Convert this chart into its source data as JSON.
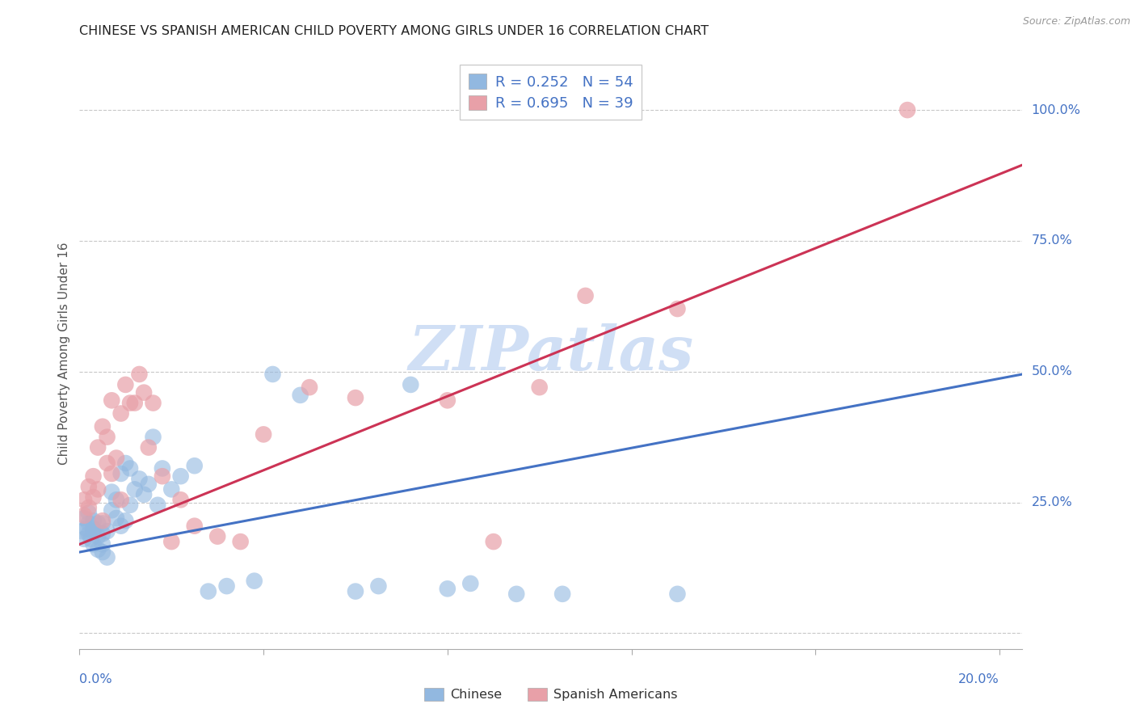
{
  "title": "CHINESE VS SPANISH AMERICAN CHILD POVERTY AMONG GIRLS UNDER 16 CORRELATION CHART",
  "source": "Source: ZipAtlas.com",
  "ylabel": "Child Poverty Among Girls Under 16",
  "xlim": [
    0.0,
    0.205
  ],
  "ylim": [
    -0.03,
    1.1
  ],
  "ytick_vals": [
    0.0,
    0.25,
    0.5,
    0.75,
    1.0
  ],
  "ytick_labels": [
    "",
    "25.0%",
    "50.0%",
    "75.0%",
    "100.0%"
  ],
  "xtick_vals": [
    0.0,
    0.04,
    0.08,
    0.12,
    0.16,
    0.2
  ],
  "chinese_R": 0.252,
  "chinese_N": 54,
  "spanish_R": 0.695,
  "spanish_N": 39,
  "chinese_dot_color": "#92b8e0",
  "spanish_dot_color": "#e8a0a8",
  "chinese_line_color": "#4472c4",
  "spanish_line_color": "#cc3355",
  "tick_label_color": "#4472c4",
  "ylabel_color": "#555555",
  "watermark_color": "#d0dff5",
  "chinese_scatter_x": [
    0.0005,
    0.001,
    0.001,
    0.0015,
    0.002,
    0.002,
    0.002,
    0.0025,
    0.003,
    0.003,
    0.003,
    0.003,
    0.004,
    0.004,
    0.004,
    0.005,
    0.005,
    0.005,
    0.005,
    0.006,
    0.006,
    0.007,
    0.007,
    0.008,
    0.008,
    0.009,
    0.009,
    0.01,
    0.01,
    0.011,
    0.011,
    0.012,
    0.013,
    0.014,
    0.015,
    0.016,
    0.017,
    0.018,
    0.02,
    0.022,
    0.025,
    0.028,
    0.032,
    0.038,
    0.042,
    0.048,
    0.06,
    0.065,
    0.072,
    0.08,
    0.085,
    0.095,
    0.105,
    0.13
  ],
  "chinese_scatter_y": [
    0.195,
    0.18,
    0.22,
    0.2,
    0.19,
    0.21,
    0.23,
    0.18,
    0.17,
    0.195,
    0.2,
    0.215,
    0.16,
    0.185,
    0.21,
    0.155,
    0.17,
    0.19,
    0.21,
    0.145,
    0.195,
    0.235,
    0.27,
    0.22,
    0.255,
    0.205,
    0.305,
    0.215,
    0.325,
    0.245,
    0.315,
    0.275,
    0.295,
    0.265,
    0.285,
    0.375,
    0.245,
    0.315,
    0.275,
    0.3,
    0.32,
    0.08,
    0.09,
    0.1,
    0.495,
    0.455,
    0.08,
    0.09,
    0.475,
    0.085,
    0.095,
    0.075,
    0.075,
    0.075
  ],
  "spanish_scatter_x": [
    0.001,
    0.001,
    0.002,
    0.002,
    0.003,
    0.003,
    0.004,
    0.004,
    0.005,
    0.005,
    0.006,
    0.006,
    0.007,
    0.007,
    0.008,
    0.009,
    0.009,
    0.01,
    0.011,
    0.012,
    0.013,
    0.014,
    0.015,
    0.016,
    0.018,
    0.02,
    0.022,
    0.025,
    0.03,
    0.035,
    0.04,
    0.05,
    0.06,
    0.08,
    0.09,
    0.1,
    0.11,
    0.13,
    0.18
  ],
  "spanish_scatter_y": [
    0.225,
    0.255,
    0.24,
    0.28,
    0.3,
    0.26,
    0.355,
    0.275,
    0.395,
    0.215,
    0.325,
    0.375,
    0.305,
    0.445,
    0.335,
    0.42,
    0.255,
    0.475,
    0.44,
    0.44,
    0.495,
    0.46,
    0.355,
    0.44,
    0.3,
    0.175,
    0.255,
    0.205,
    0.185,
    0.175,
    0.38,
    0.47,
    0.45,
    0.445,
    0.175,
    0.47,
    0.645,
    0.62,
    1.0
  ],
  "chinese_line": [
    0.0,
    0.205,
    0.155,
    0.495
  ],
  "spanish_line": [
    0.0,
    0.205,
    0.17,
    0.895
  ]
}
